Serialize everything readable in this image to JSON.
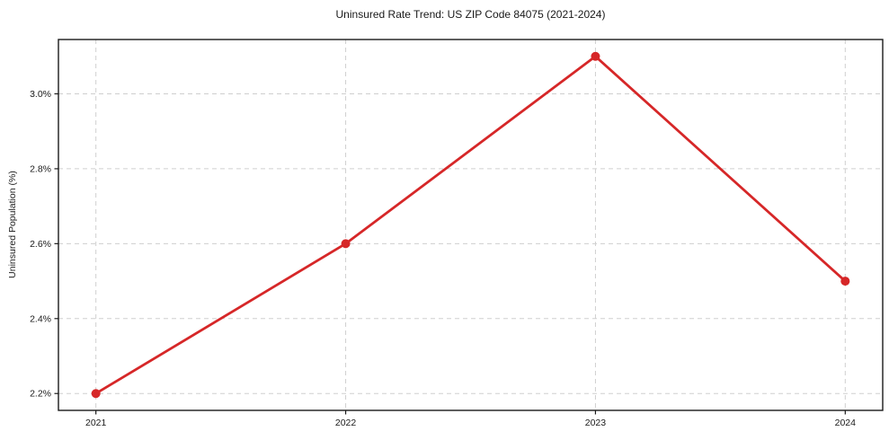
{
  "chart_data": {
    "type": "line",
    "title": "Uninsured Rate Trend: US ZIP Code 84075 (2021-2024)",
    "xlabel": "",
    "ylabel": "Uninsured Population (%)",
    "x": [
      2021,
      2022,
      2023,
      2024
    ],
    "series": [
      {
        "name": "uninsured-rate",
        "values": [
          2.2,
          2.6,
          3.1,
          2.5
        ]
      }
    ],
    "x_ticks": [
      2021,
      2022,
      2023,
      2024
    ],
    "x_tick_labels": [
      "2021",
      "2022",
      "2023",
      "2024"
    ],
    "y_ticks": [
      2.2,
      2.4,
      2.6,
      2.8,
      3.0
    ],
    "y_tick_labels": [
      "2.2%",
      "2.4%",
      "2.6%",
      "2.8%",
      "3.0%"
    ],
    "xlim": [
      2020.85,
      2024.15
    ],
    "ylim": [
      2.155,
      3.145
    ],
    "grid": true,
    "grid_style": "dashed",
    "legend": "none",
    "line_color": "#d62728",
    "grid_color": "#cfcfcf",
    "spine_color": "#1a1a1a",
    "text_color": "#1a1a1a",
    "background_color": "#ffffff",
    "marker": "circle"
  }
}
